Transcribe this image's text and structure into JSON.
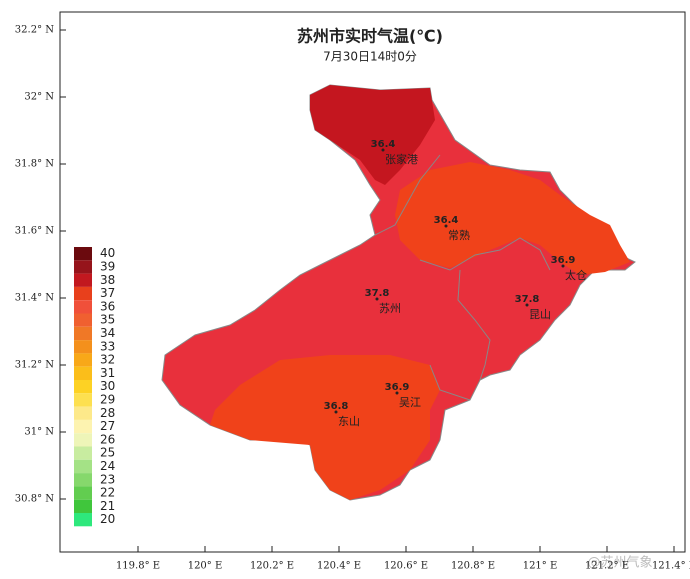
{
  "header": {
    "title": "苏州市实时气温(℃)",
    "subtitle": "7月30日14时0分"
  },
  "lat_labels": [
    "32.2° N",
    "32° N",
    "31.8° N",
    "31.6° N",
    "31.4° N",
    "31.2° N",
    "31° N",
    "30.8° N"
  ],
  "lon_labels": [
    "119.8° E",
    "120° E",
    "120.2° E",
    "120.4° E",
    "120.6° E",
    "120.8° E",
    "121° E",
    "121.2° E",
    "121.4° E"
  ],
  "legend": [
    {
      "label": "40",
      "color": "#6b0a0e"
    },
    {
      "label": "39",
      "color": "#96141b"
    },
    {
      "label": "38",
      "color": "#c2181f"
    },
    {
      "label": "37",
      "color": "#e8401c"
    },
    {
      "label": "36",
      "color": "#f0503a"
    },
    {
      "label": "35",
      "color": "#f06030"
    },
    {
      "label": "34",
      "color": "#f07826"
    },
    {
      "label": "33",
      "color": "#f4901c"
    },
    {
      "label": "32",
      "color": "#f8a818"
    },
    {
      "label": "31",
      "color": "#fbbe1a"
    },
    {
      "label": "30",
      "color": "#fdd224"
    },
    {
      "label": "29",
      "color": "#fde050"
    },
    {
      "label": "28",
      "color": "#fde98a"
    },
    {
      "label": "27",
      "color": "#fdf3b0"
    },
    {
      "label": "26",
      "color": "#eef5b8"
    },
    {
      "label": "25",
      "color": "#c8eca0"
    },
    {
      "label": "24",
      "color": "#a4e286"
    },
    {
      "label": "23",
      "color": "#86d86c"
    },
    {
      "label": "22",
      "color": "#62cd50"
    },
    {
      "label": "21",
      "color": "#40c63c"
    },
    {
      "label": "20",
      "color": "#2ee87c"
    }
  ],
  "stations": [
    {
      "value": "36.4",
      "name": "张家港"
    },
    {
      "value": "36.4",
      "name": "常熟"
    },
    {
      "value": "36.9",
      "name": "太仓"
    },
    {
      "value": "37.8",
      "name": "苏州"
    },
    {
      "value": "37.8",
      "name": "昆山"
    },
    {
      "value": "36.9",
      "name": "吴江"
    },
    {
      "value": "36.8",
      "name": "东山"
    }
  ],
  "watermark": "@苏州气象"
}
